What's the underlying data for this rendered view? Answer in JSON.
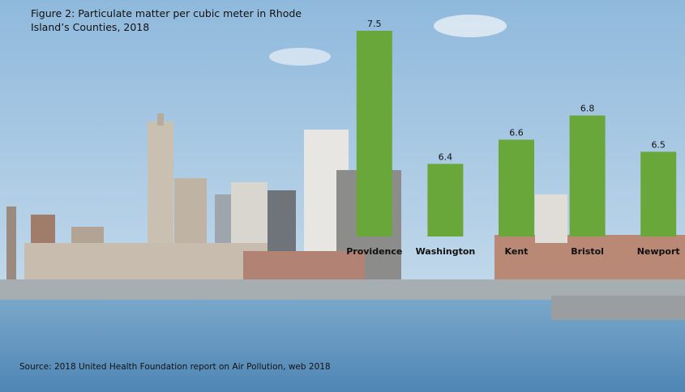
{
  "chart_data": {
    "type": "bar",
    "title": "Figure 2: Particulate matter per cubic meter in Rhode Island’s Counties, 2018",
    "categories": [
      "Providence",
      "Washington",
      "Kent",
      "Bristol",
      "Newport"
    ],
    "values": [
      7.5,
      6.4,
      6.6,
      6.8,
      6.5
    ],
    "color": "#6aa73a",
    "ylim": [
      5.8,
      7.5
    ],
    "source": "Source: 2018 United Health Foundation report on Air Pollution, web 2018"
  }
}
